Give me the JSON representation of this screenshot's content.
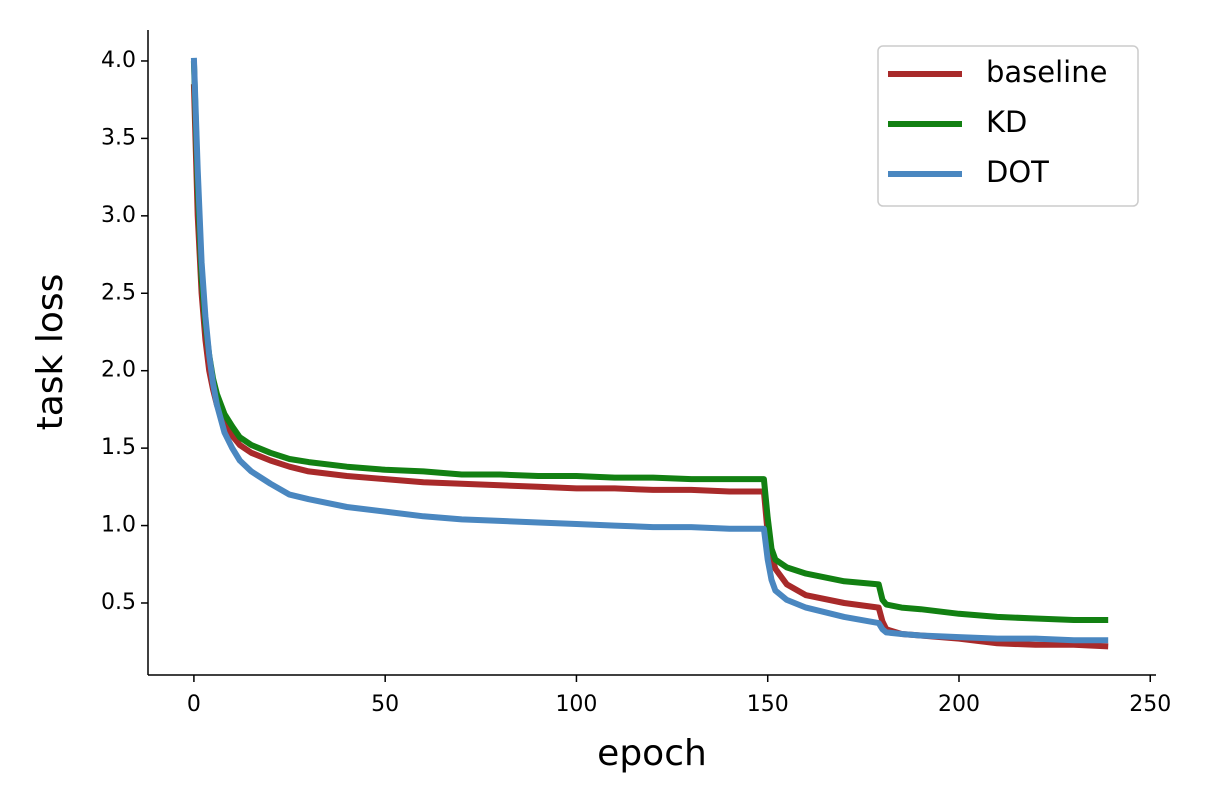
{
  "chart_data": {
    "type": "line",
    "x_label": "epoch",
    "y_label": "task loss",
    "x": [
      0,
      1,
      2,
      3,
      4,
      5,
      6,
      8,
      10,
      12,
      15,
      20,
      25,
      30,
      40,
      50,
      60,
      70,
      80,
      90,
      100,
      110,
      120,
      130,
      140,
      149,
      150,
      151,
      152,
      155,
      160,
      170,
      179,
      180,
      181,
      185,
      190,
      200,
      210,
      220,
      230,
      239
    ],
    "series": [
      {
        "name": "baseline",
        "color": "#a82a2a",
        "values": [
          3.85,
          3.0,
          2.5,
          2.2,
          2.0,
          1.88,
          1.78,
          1.65,
          1.58,
          1.52,
          1.47,
          1.42,
          1.38,
          1.35,
          1.32,
          1.3,
          1.28,
          1.27,
          1.26,
          1.25,
          1.24,
          1.24,
          1.23,
          1.23,
          1.22,
          1.22,
          0.95,
          0.8,
          0.72,
          0.62,
          0.55,
          0.5,
          0.47,
          0.38,
          0.33,
          0.3,
          0.29,
          0.27,
          0.24,
          0.23,
          0.23,
          0.22
        ]
      },
      {
        "name": "KD",
        "color": "#128012",
        "values": [
          4.0,
          3.2,
          2.6,
          2.3,
          2.1,
          1.95,
          1.85,
          1.72,
          1.64,
          1.57,
          1.52,
          1.47,
          1.43,
          1.41,
          1.38,
          1.36,
          1.35,
          1.33,
          1.33,
          1.32,
          1.32,
          1.31,
          1.31,
          1.3,
          1.3,
          1.3,
          1.05,
          0.85,
          0.78,
          0.73,
          0.69,
          0.64,
          0.62,
          0.52,
          0.49,
          0.47,
          0.46,
          0.43,
          0.41,
          0.4,
          0.39,
          0.39
        ]
      },
      {
        "name": "DOT",
        "color": "#4a87c0",
        "values": [
          4.02,
          3.3,
          2.7,
          2.35,
          2.1,
          1.92,
          1.78,
          1.6,
          1.5,
          1.42,
          1.35,
          1.27,
          1.2,
          1.17,
          1.12,
          1.09,
          1.06,
          1.04,
          1.03,
          1.02,
          1.01,
          1.0,
          0.99,
          0.99,
          0.98,
          0.98,
          0.78,
          0.65,
          0.58,
          0.52,
          0.47,
          0.41,
          0.37,
          0.33,
          0.31,
          0.3,
          0.29,
          0.28,
          0.27,
          0.27,
          0.26,
          0.26
        ]
      }
    ],
    "xlim": [
      -12,
      251.5
    ],
    "ylim": [
      0.035,
      4.2
    ],
    "xticks": [
      0,
      50,
      100,
      150,
      200,
      250
    ],
    "yticks": [
      {
        "value": 0.5,
        "label": "0.5"
      },
      {
        "value": 1,
        "label": "1.0"
      },
      {
        "value": 1.5,
        "label": "1.5"
      },
      {
        "value": 2,
        "label": "2.0"
      },
      {
        "value": 2.5,
        "label": "2.5"
      },
      {
        "value": 3,
        "label": "3.0"
      },
      {
        "value": 3.5,
        "label": "3.5"
      },
      {
        "value": 4,
        "label": "4.0"
      }
    ],
    "legend": "upper right",
    "grid": false
  }
}
